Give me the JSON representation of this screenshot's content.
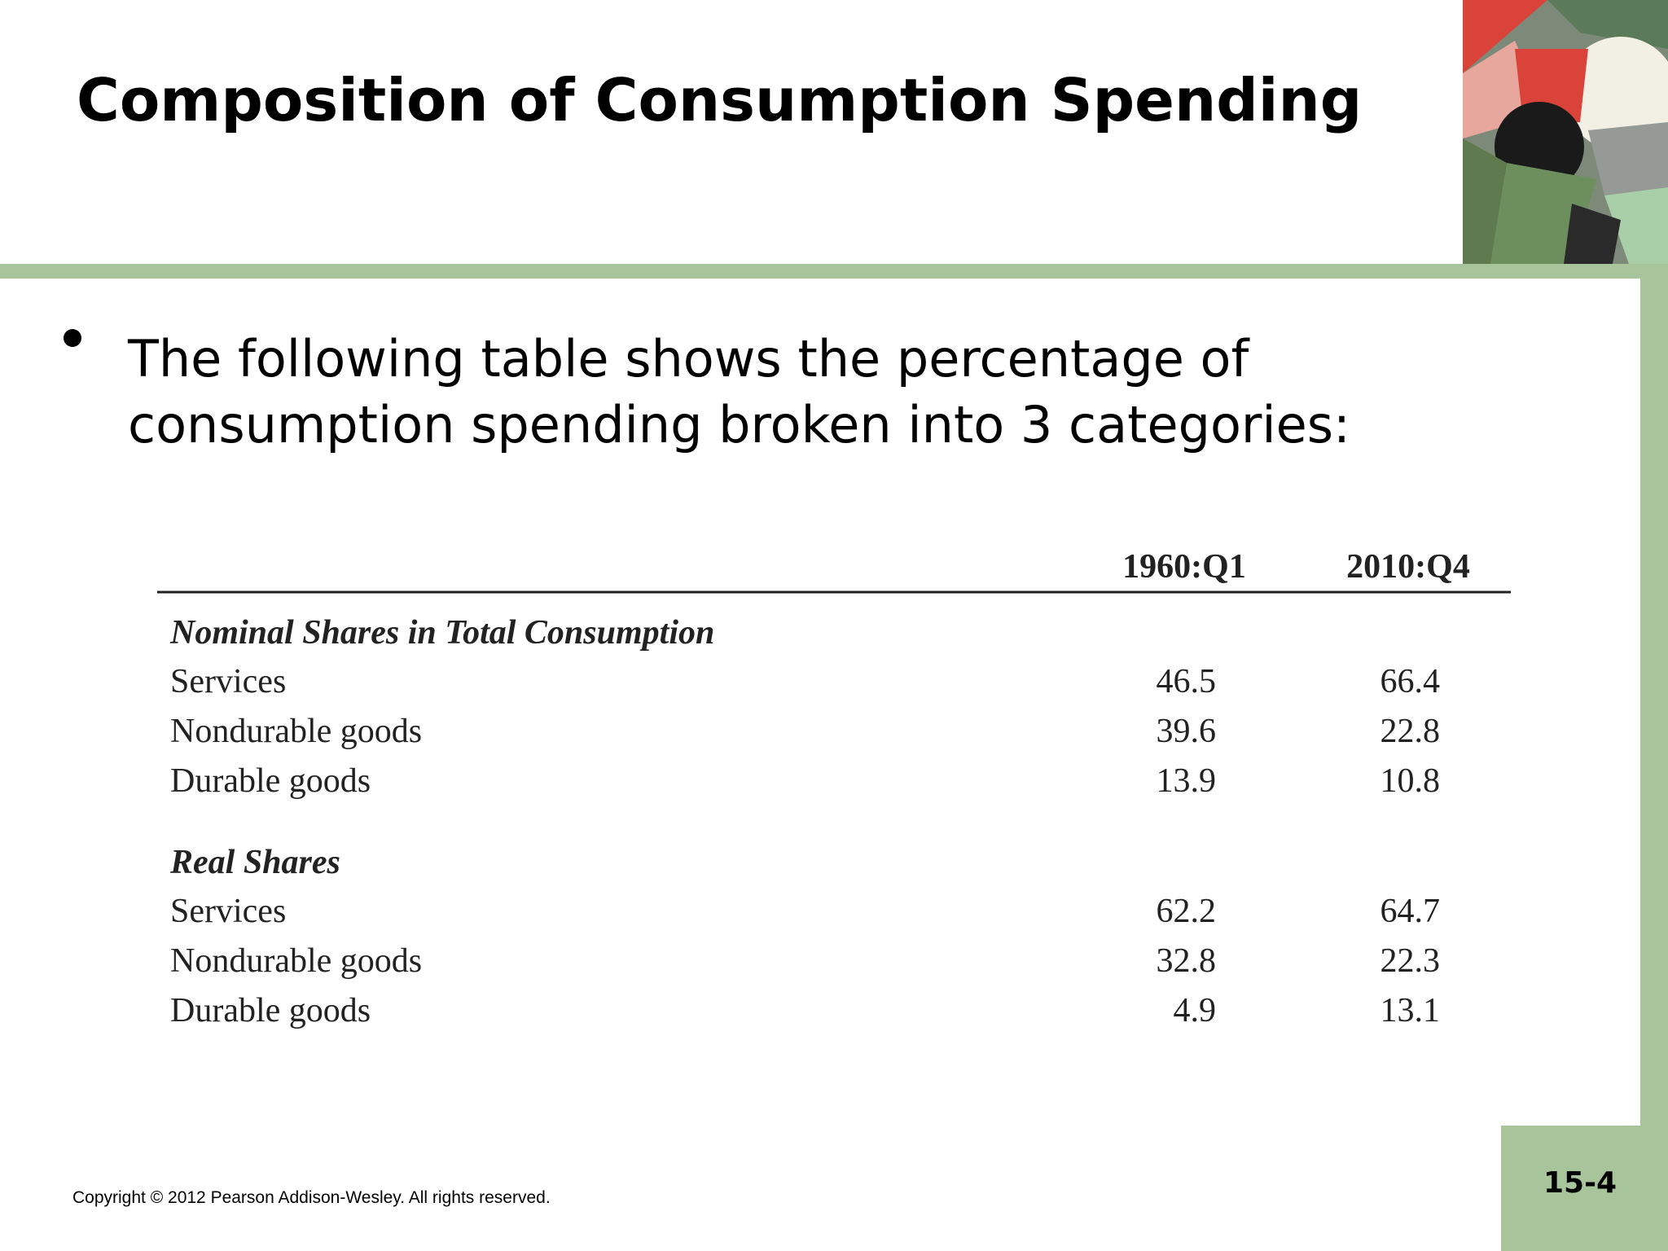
{
  "header": {
    "title": "Composition of Consumption Spending"
  },
  "bullet": "The following table shows the percentage of consumption spending broken into 3 categories:",
  "table": {
    "columns": [
      "1960:Q1",
      "2010:Q4"
    ],
    "sections": [
      {
        "title": "Nominal Shares in Total Consumption",
        "rows": [
          {
            "label": "Services",
            "values": [
              46.5,
              66.4
            ]
          },
          {
            "label": "Nondurable goods",
            "values": [
              39.6,
              22.8
            ]
          },
          {
            "label": "Durable goods",
            "values": [
              13.9,
              10.8
            ]
          }
        ]
      },
      {
        "title": "Real Shares",
        "rows": [
          {
            "label": "Services",
            "values": [
              62.2,
              64.7
            ]
          },
          {
            "label": "Nondurable goods",
            "values": [
              32.8,
              22.3
            ]
          },
          {
            "label": "Durable goods",
            "values": [
              4.9,
              13.1
            ]
          }
        ]
      }
    ]
  },
  "footer": {
    "copyright": "Copyright © 2012 Pearson Addison-Wesley. All rights reserved.",
    "page": "15-4"
  }
}
